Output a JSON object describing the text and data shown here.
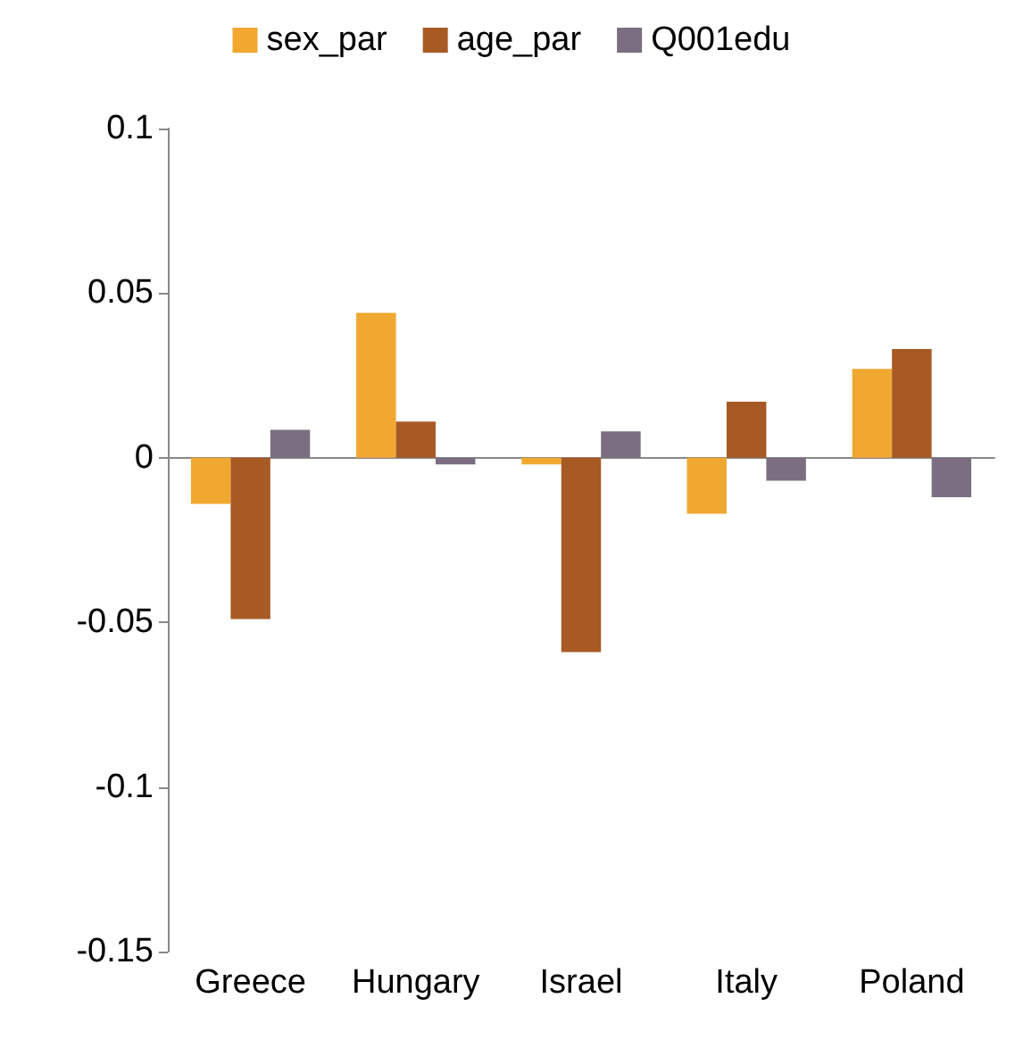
{
  "chart_data": {
    "type": "bar",
    "categories": [
      "Greece",
      "Hungary",
      "Israel",
      "Italy",
      "Poland"
    ],
    "series": [
      {
        "name": "sex_par",
        "color": "#f0a830",
        "values": [
          -0.014,
          0.044,
          -0.002,
          -0.017,
          0.027
        ]
      },
      {
        "name": "age_par",
        "color": "#a85a24",
        "values": [
          -0.049,
          0.011,
          -0.059,
          0.017,
          0.033
        ]
      },
      {
        "name": "Q001edu",
        "color": "#7a6e80",
        "values": [
          0.0085,
          -0.002,
          0.008,
          -0.007,
          -0.012
        ]
      }
    ],
    "ylim": [
      -0.15,
      0.1
    ],
    "yticks": [
      -0.15,
      -0.1,
      -0.05,
      0,
      0.05,
      0.1
    ],
    "legend": "top"
  }
}
